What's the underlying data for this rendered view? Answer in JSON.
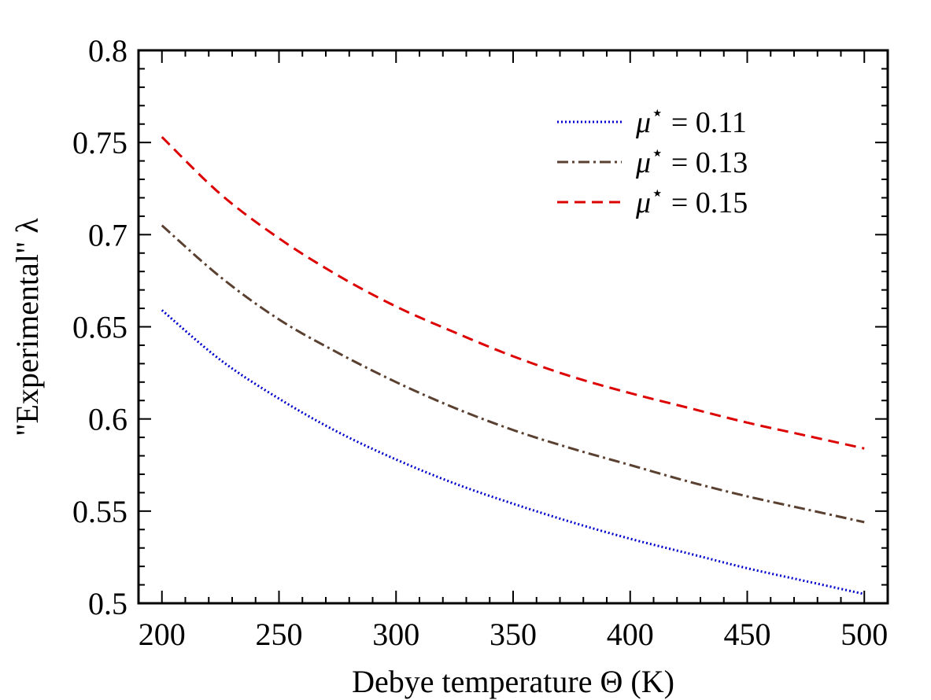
{
  "chart_data": {
    "type": "line",
    "xlabel": "Debye temperature Θ (K)",
    "ylabel": "\"Experimental\" λ",
    "xlim": [
      190,
      510
    ],
    "ylim": [
      0.5,
      0.8
    ],
    "xticks": [
      200,
      250,
      300,
      350,
      400,
      450,
      500
    ],
    "yticks": [
      0.5,
      0.55,
      0.6,
      0.65,
      0.7,
      0.75,
      0.8
    ],
    "xtick_labels": [
      "200",
      "250",
      "300",
      "350",
      "400",
      "450",
      "500"
    ],
    "ytick_labels": [
      "0.5",
      "0.55",
      "0.6",
      "0.65",
      "0.7",
      "0.75",
      "0.8"
    ],
    "grid": false,
    "legend_position": "top-right",
    "x": [
      200,
      225,
      250,
      275,
      300,
      325,
      350,
      375,
      400,
      425,
      450,
      475,
      500
    ],
    "series": [
      {
        "name_symbol": "μ",
        "name_sup": "⋆",
        "name_suffix": " = 0.11",
        "color": "#0000cc",
        "dash": "dotted",
        "values": [
          0.659,
          0.632,
          0.611,
          0.593,
          0.578,
          0.565,
          0.554,
          0.544,
          0.535,
          0.527,
          0.519,
          0.512,
          0.505
        ]
      },
      {
        "name_symbol": "μ",
        "name_sup": "⋆",
        "name_suffix": " = 0.13",
        "color": "#5a4030",
        "dash": "dashdot",
        "values": [
          0.705,
          0.677,
          0.654,
          0.636,
          0.62,
          0.606,
          0.594,
          0.584,
          0.575,
          0.566,
          0.558,
          0.551,
          0.544
        ]
      },
      {
        "name_symbol": "μ",
        "name_sup": "⋆",
        "name_suffix": " = 0.15",
        "color": "#dd0000",
        "dash": "dashed",
        "values": [
          0.753,
          0.722,
          0.698,
          0.678,
          0.661,
          0.647,
          0.634,
          0.623,
          0.614,
          0.606,
          0.598,
          0.591,
          0.584
        ]
      }
    ]
  }
}
